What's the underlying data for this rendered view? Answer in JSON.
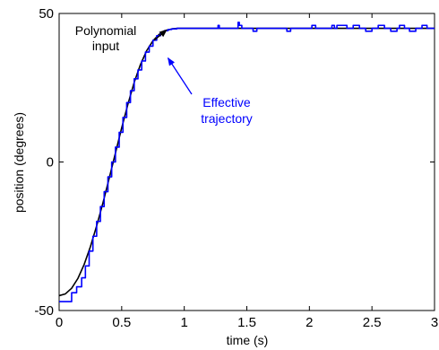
{
  "chart_data": {
    "type": "line",
    "xlabel": "time (s)",
    "ylabel": "position (degrees)",
    "xlim": [
      0,
      3
    ],
    "ylim": [
      -50,
      50
    ],
    "xticks": [
      0,
      0.5,
      1,
      1.5,
      2,
      2.5,
      3
    ],
    "xtick_labels": [
      "0",
      "0.5",
      "1",
      "1.5",
      "2",
      "2.5",
      "3"
    ],
    "yticks": [
      -50,
      0,
      50
    ],
    "ytick_labels": [
      "-50",
      "0",
      "50"
    ],
    "grid": false,
    "series": [
      {
        "color": "#000000",
        "x": [
          0,
          0.05,
          0.1,
          0.15,
          0.2,
          0.25,
          0.3,
          0.35,
          0.4,
          0.45,
          0.5,
          0.55,
          0.6,
          0.65,
          0.7,
          0.75,
          0.8,
          0.85,
          0.9,
          0.95,
          1.0,
          1.1,
          1.5,
          2.0,
          2.5,
          3.0
        ],
        "y": [
          -45,
          -44.4,
          -42.5,
          -39.2,
          -34.5,
          -28.5,
          -21.5,
          -13.8,
          -5.5,
          3.0,
          11.5,
          19.5,
          26.8,
          32.8,
          37.5,
          40.8,
          43.0,
          44.2,
          44.8,
          45,
          45,
          45,
          45,
          45,
          45,
          45
        ]
      },
      {
        "color": "#0000ff",
        "x": [
          0,
          0.1,
          0.14,
          0.18,
          0.21,
          0.24,
          0.27,
          0.3,
          0.33,
          0.36,
          0.39,
          0.42,
          0.45,
          0.48,
          0.51,
          0.54,
          0.57,
          0.6,
          0.63,
          0.66,
          0.69,
          0.72,
          0.75,
          0.78,
          0.81,
          0.84,
          0.87,
          0.9,
          0.94,
          0.98,
          1.0,
          1.2,
          1.27,
          1.28,
          1.35,
          1.42,
          1.43,
          1.44,
          1.46,
          1.48,
          1.55,
          1.58,
          1.6,
          1.8,
          1.82,
          1.85,
          2.0,
          2.02,
          2.05,
          2.15,
          2.18,
          2.2,
          2.22,
          2.3,
          2.35,
          2.4,
          2.45,
          2.5,
          2.55,
          2.6,
          2.65,
          2.7,
          2.72,
          2.76,
          2.8,
          2.85,
          2.9,
          2.94,
          3.0
        ],
        "y": [
          -47,
          -44,
          -42,
          -39,
          -35,
          -30,
          -25,
          -20,
          -15,
          -10,
          -5,
          0,
          5,
          10,
          15,
          20,
          24,
          28,
          31,
          34,
          37,
          39,
          41,
          42.5,
          43.5,
          44.2,
          44.6,
          44.8,
          45,
          45,
          45,
          45,
          46,
          45,
          45,
          45,
          47,
          46,
          45,
          45,
          44,
          45,
          45,
          45,
          44,
          45,
          45,
          46,
          45,
          45,
          46,
          45,
          46,
          45,
          46,
          45,
          44,
          45,
          46,
          45,
          44,
          45,
          46,
          45,
          44,
          45,
          46,
          45,
          45
        ]
      }
    ],
    "annotations": [
      {
        "text": [
          "Polynomial",
          "input"
        ],
        "color": "#000000",
        "arrow_to": [
          0.86,
          44.5
        ]
      },
      {
        "text": [
          "Effective",
          "trajectory"
        ],
        "color": "#0000ff",
        "arrow_to": [
          0.87,
          35
        ]
      }
    ]
  }
}
